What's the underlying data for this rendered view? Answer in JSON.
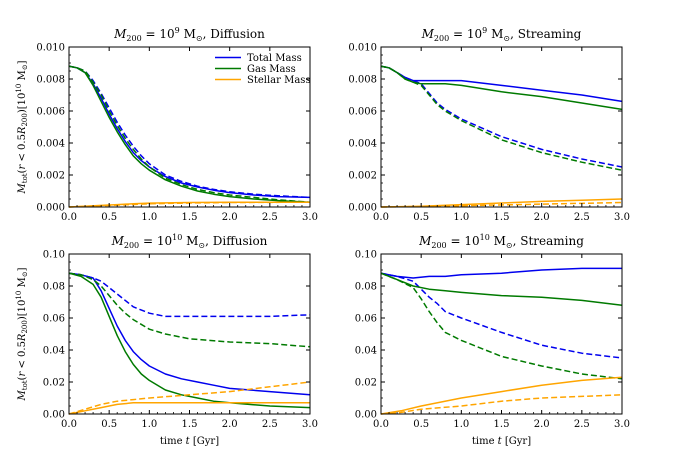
{
  "figure": {
    "ylabel": "M_tot(r < 0.5R_200)[10^10 M_sun]",
    "xlabel": "time t [Gyr]"
  },
  "legend": {
    "entries": [
      {
        "label": "Total Mass",
        "color": "#0000ee"
      },
      {
        "label": "Gas Mass",
        "color": "#007a00"
      },
      {
        "label": "Stellar Mass",
        "color": "#ffa500"
      }
    ]
  },
  "chart_data": [
    {
      "type": "line",
      "title": "M_200 = 10^9 M_sun, Diffusion",
      "xlabel": "",
      "ylabel": "M_tot(r < 0.5R_200)[10^10 M_sun]",
      "xlim": [
        0,
        3.0
      ],
      "ylim": [
        0,
        0.01
      ],
      "xticks": [
        "0.0",
        "0.5",
        "1.0",
        "1.5",
        "2.0",
        "2.5",
        "3.0"
      ],
      "yticks": [
        "0.000",
        "0.002",
        "0.004",
        "0.006",
        "0.008",
        "0.010"
      ],
      "series": [
        {
          "name": "Total Mass (solid)",
          "color": "#0000ee",
          "dash": false,
          "x": [
            0,
            0.1,
            0.2,
            0.3,
            0.4,
            0.5,
            0.6,
            0.7,
            0.8,
            0.9,
            1.0,
            1.2,
            1.4,
            1.6,
            1.8,
            2.0,
            2.3,
            2.6,
            3.0
          ],
          "y": [
            0.0088,
            0.0087,
            0.0084,
            0.0077,
            0.0068,
            0.0058,
            0.0049,
            0.0041,
            0.0034,
            0.0029,
            0.0025,
            0.0019,
            0.0015,
            0.00125,
            0.00105,
            0.0009,
            0.00075,
            0.00065,
            0.0006
          ]
        },
        {
          "name": "Total Mass (dashed)",
          "color": "#0000ee",
          "dash": true,
          "x": [
            0,
            0.1,
            0.2,
            0.3,
            0.4,
            0.5,
            0.6,
            0.7,
            0.8,
            0.9,
            1.0,
            1.2,
            1.4,
            1.6,
            1.8,
            2.0,
            2.3,
            2.6,
            3.0
          ],
          "y": [
            0.0088,
            0.0087,
            0.0085,
            0.0079,
            0.0071,
            0.0062,
            0.0053,
            0.0045,
            0.0038,
            0.0032,
            0.0027,
            0.002,
            0.0016,
            0.0013,
            0.0011,
            0.00095,
            0.0008,
            0.0007,
            0.0006
          ]
        },
        {
          "name": "Gas Mass (solid)",
          "color": "#007a00",
          "dash": false,
          "x": [
            0,
            0.1,
            0.2,
            0.3,
            0.4,
            0.5,
            0.6,
            0.7,
            0.8,
            0.9,
            1.0,
            1.2,
            1.4,
            1.6,
            1.8,
            2.0,
            2.3,
            2.6,
            3.0
          ],
          "y": [
            0.0088,
            0.0087,
            0.0084,
            0.0076,
            0.0066,
            0.0056,
            0.0047,
            0.0039,
            0.0032,
            0.0027,
            0.0023,
            0.0017,
            0.0013,
            0.001,
            0.0008,
            0.00065,
            0.0005,
            0.0004,
            0.0003
          ]
        },
        {
          "name": "Gas Mass (dashed)",
          "color": "#007a00",
          "dash": true,
          "x": [
            0,
            0.1,
            0.2,
            0.3,
            0.4,
            0.5,
            0.6,
            0.7,
            0.8,
            0.9,
            1.0,
            1.2,
            1.4,
            1.6,
            1.8,
            2.0,
            2.3,
            2.6,
            3.0
          ],
          "y": [
            0.0088,
            0.0087,
            0.0085,
            0.0078,
            0.007,
            0.006,
            0.0051,
            0.0043,
            0.0036,
            0.003,
            0.0025,
            0.0018,
            0.0014,
            0.0011,
            0.0009,
            0.00075,
            0.0006,
            0.00045,
            0.0003
          ]
        },
        {
          "name": "Stellar Mass (solid)",
          "color": "#ffa500",
          "dash": false,
          "x": [
            0,
            0.2,
            0.4,
            0.6,
            0.8,
            1.0,
            1.5,
            2.0,
            2.5,
            3.0
          ],
          "y": [
            0,
            5e-05,
            0.0001,
            0.00015,
            0.0002,
            0.00024,
            0.00028,
            0.0003,
            0.0003,
            0.0003
          ]
        },
        {
          "name": "Stellar Mass (dashed)",
          "color": "#ffa500",
          "dash": true,
          "x": [
            0,
            0.2,
            0.4,
            0.6,
            0.8,
            1.0,
            1.5,
            2.0,
            2.5,
            3.0
          ],
          "y": [
            0,
            4e-05,
            8e-05,
            0.00012,
            0.00016,
            0.0002,
            0.00025,
            0.00028,
            0.00029,
            0.0003
          ]
        }
      ]
    },
    {
      "type": "line",
      "title": "M_200 = 10^9 M_sun, Streaming",
      "xlabel": "",
      "ylabel": "",
      "xlim": [
        0,
        3.0
      ],
      "ylim": [
        0,
        0.01
      ],
      "xticks": [
        "0.0",
        "0.5",
        "1.0",
        "1.5",
        "2.0",
        "2.5",
        "3.0"
      ],
      "yticks": [
        "0.000",
        "0.002",
        "0.004",
        "0.006",
        "0.008",
        "0.010"
      ],
      "series": [
        {
          "name": "Total Mass (solid)",
          "color": "#0000ee",
          "dash": false,
          "x": [
            0,
            0.1,
            0.2,
            0.3,
            0.4,
            0.5,
            0.6,
            0.8,
            1.0,
            1.5,
            2.0,
            2.5,
            3.0
          ],
          "y": [
            0.0088,
            0.0087,
            0.0084,
            0.0081,
            0.0079,
            0.0079,
            0.0079,
            0.0079,
            0.0079,
            0.0076,
            0.0073,
            0.007,
            0.0066
          ]
        },
        {
          "name": "Total Mass (dashed)",
          "color": "#0000ee",
          "dash": true,
          "x": [
            0,
            0.1,
            0.2,
            0.3,
            0.4,
            0.5,
            0.6,
            0.7,
            0.8,
            0.9,
            1.0,
            1.5,
            2.0,
            2.5,
            3.0
          ],
          "y": [
            0.0088,
            0.0087,
            0.0084,
            0.0081,
            0.0079,
            0.0077,
            0.0071,
            0.0065,
            0.0061,
            0.0058,
            0.0055,
            0.0044,
            0.0036,
            0.003,
            0.0025
          ]
        },
        {
          "name": "Gas Mass (solid)",
          "color": "#007a00",
          "dash": false,
          "x": [
            0,
            0.1,
            0.2,
            0.3,
            0.4,
            0.5,
            0.6,
            0.8,
            1.0,
            1.5,
            2.0,
            2.5,
            3.0
          ],
          "y": [
            0.0088,
            0.0087,
            0.0084,
            0.008,
            0.0078,
            0.0077,
            0.0077,
            0.0077,
            0.0076,
            0.0072,
            0.0069,
            0.0065,
            0.0061
          ]
        },
        {
          "name": "Gas Mass (dashed)",
          "color": "#007a00",
          "dash": true,
          "x": [
            0,
            0.1,
            0.2,
            0.3,
            0.4,
            0.5,
            0.6,
            0.7,
            0.8,
            0.9,
            1.0,
            1.5,
            2.0,
            2.5,
            3.0
          ],
          "y": [
            0.0088,
            0.0087,
            0.0084,
            0.008,
            0.0078,
            0.0076,
            0.007,
            0.0064,
            0.006,
            0.0057,
            0.0054,
            0.0042,
            0.0034,
            0.0028,
            0.0023
          ]
        },
        {
          "name": "Stellar Mass (solid)",
          "color": "#ffa500",
          "dash": false,
          "x": [
            0,
            0.5,
            1.0,
            1.5,
            2.0,
            2.5,
            3.0
          ],
          "y": [
            0,
            5e-05,
            0.00015,
            0.00025,
            0.00035,
            0.00042,
            0.0005
          ]
        },
        {
          "name": "Stellar Mass (dashed)",
          "color": "#ffa500",
          "dash": true,
          "x": [
            0,
            0.5,
            1.0,
            1.5,
            2.0,
            2.5,
            3.0
          ],
          "y": [
            0,
            3e-05,
            8e-05,
            0.00013,
            0.00018,
            0.00023,
            0.00028
          ]
        }
      ]
    },
    {
      "type": "line",
      "title": "M_200 = 10^10 M_sun, Diffusion",
      "xlabel": "time t [Gyr]",
      "ylabel": "M_tot(r < 0.5R_200)[10^10 M_sun]",
      "xlim": [
        0,
        3.0
      ],
      "ylim": [
        0,
        0.1
      ],
      "xticks": [
        "0.0",
        "0.5",
        "1.0",
        "1.5",
        "2.0",
        "2.5",
        "3.0"
      ],
      "yticks": [
        "0.00",
        "0.02",
        "0.04",
        "0.06",
        "0.08",
        "0.10"
      ],
      "series": [
        {
          "name": "Total Mass (solid)",
          "color": "#0000ee",
          "dash": false,
          "x": [
            0,
            0.15,
            0.3,
            0.4,
            0.5,
            0.6,
            0.7,
            0.8,
            0.9,
            1.0,
            1.2,
            1.4,
            1.6,
            1.8,
            2.0,
            2.5,
            3.0
          ],
          "y": [
            0.088,
            0.087,
            0.085,
            0.077,
            0.066,
            0.055,
            0.046,
            0.039,
            0.034,
            0.03,
            0.025,
            0.022,
            0.02,
            0.018,
            0.016,
            0.014,
            0.012
          ]
        },
        {
          "name": "Total Mass (dashed)",
          "color": "#0000ee",
          "dash": true,
          "x": [
            0,
            0.15,
            0.3,
            0.4,
            0.5,
            0.6,
            0.7,
            0.8,
            1.0,
            1.2,
            1.5,
            2.0,
            2.5,
            3.0
          ],
          "y": [
            0.088,
            0.087,
            0.085,
            0.083,
            0.079,
            0.075,
            0.071,
            0.067,
            0.063,
            0.061,
            0.061,
            0.061,
            0.061,
            0.062
          ]
        },
        {
          "name": "Gas Mass (solid)",
          "color": "#007a00",
          "dash": false,
          "x": [
            0,
            0.15,
            0.3,
            0.4,
            0.5,
            0.6,
            0.7,
            0.8,
            0.9,
            1.0,
            1.2,
            1.4,
            1.6,
            1.8,
            2.0,
            2.5,
            3.0
          ],
          "y": [
            0.088,
            0.086,
            0.081,
            0.073,
            0.061,
            0.049,
            0.039,
            0.031,
            0.025,
            0.021,
            0.015,
            0.012,
            0.01,
            0.008,
            0.007,
            0.005,
            0.004
          ]
        },
        {
          "name": "Gas Mass (dashed)",
          "color": "#007a00",
          "dash": true,
          "x": [
            0,
            0.15,
            0.3,
            0.4,
            0.5,
            0.6,
            0.7,
            0.8,
            1.0,
            1.2,
            1.5,
            2.0,
            2.5,
            3.0
          ],
          "y": [
            0.088,
            0.087,
            0.084,
            0.08,
            0.074,
            0.068,
            0.063,
            0.059,
            0.053,
            0.05,
            0.047,
            0.045,
            0.044,
            0.042
          ]
        },
        {
          "name": "Stellar Mass (solid)",
          "color": "#ffa500",
          "dash": false,
          "x": [
            0,
            0.2,
            0.4,
            0.6,
            0.8,
            1.0,
            1.5,
            2.0,
            2.5,
            3.0
          ],
          "y": [
            0,
            0.002,
            0.004,
            0.006,
            0.007,
            0.007,
            0.007,
            0.007,
            0.007,
            0.007
          ]
        },
        {
          "name": "Stellar Mass (dashed)",
          "color": "#ffa500",
          "dash": true,
          "x": [
            0,
            0.2,
            0.4,
            0.6,
            0.8,
            1.0,
            1.5,
            2.0,
            2.5,
            3.0
          ],
          "y": [
            0,
            0.003,
            0.006,
            0.008,
            0.009,
            0.01,
            0.012,
            0.014,
            0.017,
            0.02
          ]
        }
      ]
    },
    {
      "type": "line",
      "title": "M_200 = 10^10 M_sun, Streaming",
      "xlabel": "time t [Gyr]",
      "ylabel": "",
      "xlim": [
        0,
        3.0
      ],
      "ylim": [
        0,
        0.1
      ],
      "xticks": [
        "0.0",
        "0.5",
        "1.0",
        "1.5",
        "2.0",
        "2.5",
        "3.0"
      ],
      "yticks": [
        "0.00",
        "0.02",
        "0.04",
        "0.06",
        "0.08",
        "0.10"
      ],
      "series": [
        {
          "name": "Total Mass (solid)",
          "color": "#0000ee",
          "dash": false,
          "x": [
            0,
            0.2,
            0.4,
            0.6,
            0.8,
            1.0,
            1.5,
            2.0,
            2.5,
            3.0
          ],
          "y": [
            0.088,
            0.086,
            0.085,
            0.086,
            0.086,
            0.087,
            0.088,
            0.09,
            0.091,
            0.091
          ]
        },
        {
          "name": "Total Mass (dashed)",
          "color": "#0000ee",
          "dash": true,
          "x": [
            0,
            0.2,
            0.4,
            0.5,
            0.6,
            0.7,
            0.8,
            1.0,
            1.5,
            2.0,
            2.5,
            3.0
          ],
          "y": [
            0.088,
            0.086,
            0.083,
            0.078,
            0.073,
            0.069,
            0.064,
            0.06,
            0.051,
            0.043,
            0.038,
            0.035
          ]
        },
        {
          "name": "Gas Mass (solid)",
          "color": "#007a00",
          "dash": false,
          "x": [
            0,
            0.2,
            0.4,
            0.6,
            0.8,
            1.0,
            1.5,
            2.0,
            2.5,
            3.0
          ],
          "y": [
            0.088,
            0.084,
            0.08,
            0.078,
            0.077,
            0.076,
            0.074,
            0.073,
            0.071,
            0.068
          ]
        },
        {
          "name": "Gas Mass (dashed)",
          "color": "#007a00",
          "dash": true,
          "x": [
            0,
            0.2,
            0.4,
            0.5,
            0.6,
            0.7,
            0.8,
            1.0,
            1.5,
            2.0,
            2.5,
            3.0
          ],
          "y": [
            0.088,
            0.084,
            0.079,
            0.072,
            0.064,
            0.057,
            0.051,
            0.046,
            0.036,
            0.03,
            0.025,
            0.022
          ]
        },
        {
          "name": "Stellar Mass (solid)",
          "color": "#ffa500",
          "dash": false,
          "x": [
            0,
            0.25,
            0.5,
            1.0,
            1.5,
            2.0,
            2.5,
            3.0
          ],
          "y": [
            0,
            0.002,
            0.005,
            0.01,
            0.014,
            0.018,
            0.021,
            0.023
          ]
        },
        {
          "name": "Stellar Mass (dashed)",
          "color": "#ffa500",
          "dash": true,
          "x": [
            0,
            0.25,
            0.5,
            1.0,
            1.5,
            2.0,
            2.5,
            3.0
          ],
          "y": [
            0,
            0.001,
            0.003,
            0.005,
            0.008,
            0.01,
            0.011,
            0.012
          ]
        }
      ]
    }
  ]
}
